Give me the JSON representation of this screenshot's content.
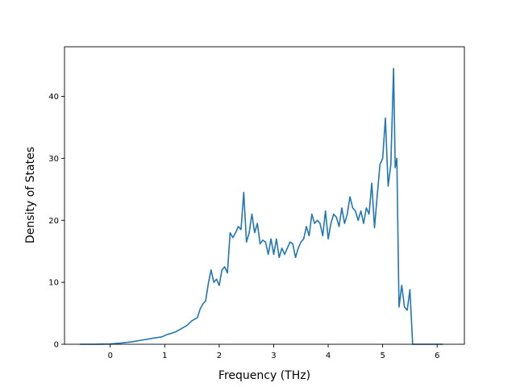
{
  "chart_data": {
    "type": "line",
    "title": "",
    "xlabel": "Frequency (THz)",
    "ylabel": "Density of States",
    "xlim": [
      -0.84,
      6.5
    ],
    "ylim": [
      0,
      48
    ],
    "grid": false,
    "legend": "none",
    "xticks": [
      0,
      1,
      2,
      3,
      4,
      5,
      6
    ],
    "xtick_labels": [
      "0",
      "1",
      "2",
      "3",
      "4",
      "5",
      "6"
    ],
    "yticks": [
      0,
      10,
      20,
      30,
      40
    ],
    "ytick_labels": [
      "0",
      "10",
      "20",
      "30",
      "40"
    ],
    "series": [
      {
        "color": "#1f77b4",
        "x": [
          -0.55,
          -0.3,
          0.0,
          0.2,
          0.4,
          0.6,
          0.8,
          0.95,
          1.05,
          1.1,
          1.2,
          1.3,
          1.4,
          1.5,
          1.6,
          1.65,
          1.7,
          1.75,
          1.8,
          1.85,
          1.9,
          1.95,
          2.0,
          2.05,
          2.1,
          2.15,
          2.2,
          2.25,
          2.3,
          2.35,
          2.4,
          2.45,
          2.5,
          2.55,
          2.6,
          2.65,
          2.7,
          2.75,
          2.8,
          2.85,
          2.9,
          2.95,
          3.0,
          3.05,
          3.1,
          3.15,
          3.2,
          3.25,
          3.3,
          3.35,
          3.4,
          3.45,
          3.5,
          3.55,
          3.6,
          3.65,
          3.7,
          3.75,
          3.8,
          3.85,
          3.9,
          3.95,
          4.0,
          4.05,
          4.1,
          4.15,
          4.2,
          4.25,
          4.3,
          4.35,
          4.4,
          4.45,
          4.5,
          4.55,
          4.6,
          4.65,
          4.7,
          4.75,
          4.8,
          4.85,
          4.9,
          4.95,
          5.0,
          5.05,
          5.1,
          5.15,
          5.2,
          5.23,
          5.26,
          5.3,
          5.35,
          5.4,
          5.45,
          5.5,
          5.55,
          5.6,
          5.8,
          6.1
        ],
        "y": [
          0.0,
          0.0,
          0.05,
          0.2,
          0.4,
          0.7,
          1.0,
          1.2,
          1.6,
          1.7,
          2.0,
          2.5,
          3.0,
          3.8,
          4.3,
          5.7,
          6.5,
          7.0,
          9.8,
          12.0,
          10.0,
          10.5,
          9.5,
          12.0,
          12.5,
          11.5,
          18.0,
          17.2,
          18.0,
          19.0,
          18.5,
          24.5,
          16.5,
          18.0,
          21.0,
          18.0,
          19.5,
          16.2,
          16.8,
          16.5,
          14.5,
          17.0,
          14.5,
          17.0,
          14.0,
          15.5,
          14.5,
          15.5,
          16.5,
          16.2,
          14.0,
          15.5,
          16.5,
          17.0,
          19.0,
          17.5,
          21.0,
          19.5,
          20.0,
          19.5,
          17.5,
          21.5,
          17.0,
          19.5,
          21.0,
          20.5,
          19.0,
          22.0,
          19.5,
          21.0,
          23.8,
          22.0,
          21.5,
          20.0,
          21.5,
          19.5,
          22.0,
          21.0,
          26.0,
          18.8,
          24.0,
          29.0,
          30.0,
          36.5,
          25.5,
          29.0,
          44.5,
          28.5,
          30.0,
          6.0,
          9.5,
          6.0,
          5.5,
          8.8,
          0.0,
          0.0,
          0.0,
          0.0
        ]
      }
    ]
  }
}
